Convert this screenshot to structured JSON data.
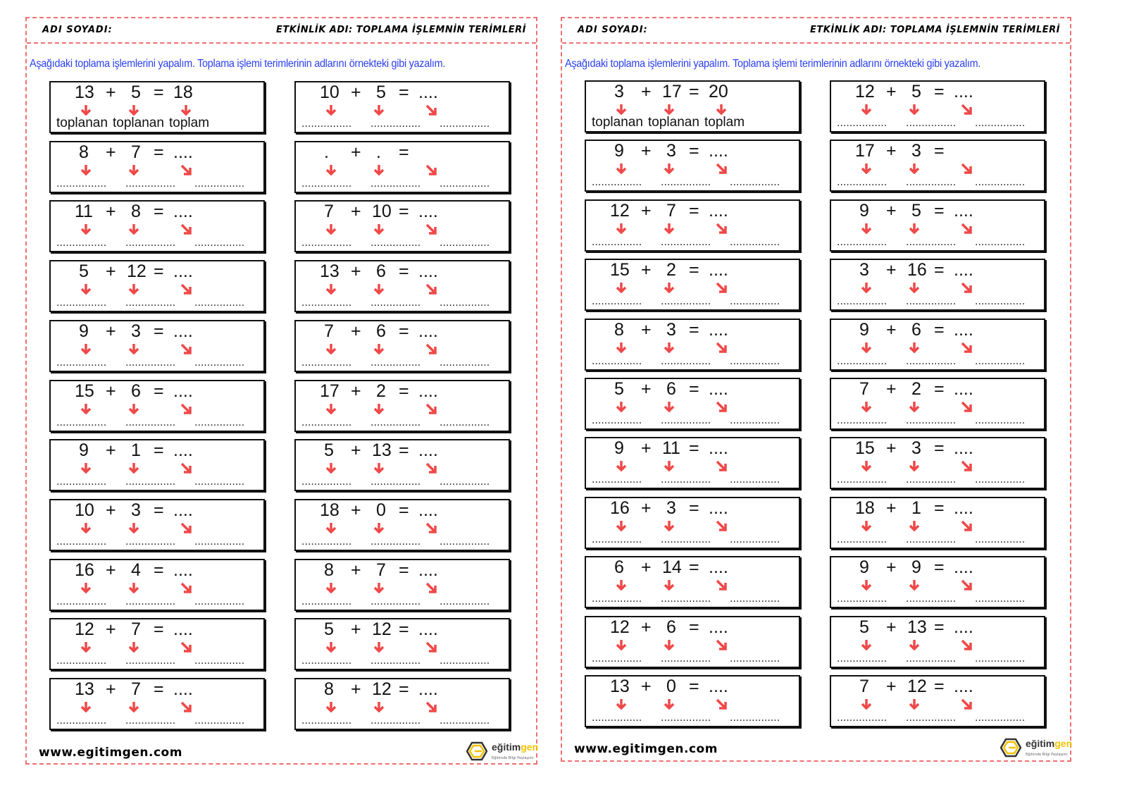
{
  "colors": {
    "border": "#f07070",
    "instruction": "#2a3ff0",
    "arrow": "#f04848"
  },
  "header": {
    "name_label": "ADI SOYADI:",
    "activity_label": "ETKİNLİK ADI: TOPLAMA İŞLEMNİN TERİMLERİ"
  },
  "instruction": "Aşağıdaki toplama işlemlerini yapalım. Toplama işlemi terimlerinin adlarını örnekteki gibi yazalım.",
  "example_labels": [
    "toplanan",
    "toplanan",
    "toplam"
  ],
  "blank": "................",
  "footer": {
    "website": "www.egitimgen.com",
    "logo_text_1": "eğitim",
    "logo_text_2": "gen",
    "logo_tagline": "Eğitimde Bilgi Paylaşımı"
  },
  "pages": [
    {
      "left": [
        {
          "a": "13",
          "b": "5",
          "r": "18",
          "example": true
        },
        {
          "a": "8",
          "b": "7",
          "r": "...."
        },
        {
          "a": "11",
          "b": "8",
          "r": "...."
        },
        {
          "a": "5",
          "b": "12",
          "r": "...."
        },
        {
          "a": "9",
          "b": "3",
          "r": "...."
        },
        {
          "a": "15",
          "b": "6",
          "r": "...."
        },
        {
          "a": "9",
          "b": "1",
          "r": "...."
        },
        {
          "a": "10",
          "b": "3",
          "r": "...."
        },
        {
          "a": "16",
          "b": "4",
          "r": "...."
        },
        {
          "a": "12",
          "b": "7",
          "r": "...."
        },
        {
          "a": "13",
          "b": "7",
          "r": "...."
        }
      ],
      "right": [
        {
          "a": "10",
          "b": "5",
          "r": "...."
        },
        {
          "a": ".",
          "b": ".",
          "r": ""
        },
        {
          "a": "7",
          "b": "10",
          "r": "...."
        },
        {
          "a": "13",
          "b": "6",
          "r": "...."
        },
        {
          "a": "7",
          "b": "6",
          "r": "...."
        },
        {
          "a": "17",
          "b": "2",
          "r": "...."
        },
        {
          "a": "5",
          "b": "13",
          "r": "...."
        },
        {
          "a": "18",
          "b": "0",
          "r": "...."
        },
        {
          "a": "8",
          "b": "7",
          "r": "...."
        },
        {
          "a": "5",
          "b": "12",
          "r": "...."
        },
        {
          "a": "8",
          "b": "12",
          "r": "...."
        }
      ]
    },
    {
      "left": [
        {
          "a": "3",
          "b": "17",
          "r": "20",
          "example": true
        },
        {
          "a": "9",
          "b": "3",
          "r": "...."
        },
        {
          "a": "12",
          "b": "7",
          "r": "...."
        },
        {
          "a": "15",
          "b": "2",
          "r": "...."
        },
        {
          "a": "8",
          "b": "3",
          "r": "...."
        },
        {
          "a": "5",
          "b": "6",
          "r": "...."
        },
        {
          "a": "9",
          "b": "11",
          "r": "...."
        },
        {
          "a": "16",
          "b": "3",
          "r": "...."
        },
        {
          "a": "6",
          "b": "14",
          "r": "...."
        },
        {
          "a": "12",
          "b": "6",
          "r": "...."
        },
        {
          "a": "13",
          "b": "0",
          "r": "...."
        }
      ],
      "right": [
        {
          "a": "12",
          "b": "5",
          "r": "...."
        },
        {
          "a": "17",
          "b": "3",
          "r": ""
        },
        {
          "a": "9",
          "b": "5",
          "r": "...."
        },
        {
          "a": "3",
          "b": "16",
          "r": "...."
        },
        {
          "a": "9",
          "b": "6",
          "r": "...."
        },
        {
          "a": "7",
          "b": "2",
          "r": "...."
        },
        {
          "a": "15",
          "b": "3",
          "r": "...."
        },
        {
          "a": "18",
          "b": "1",
          "r": "...."
        },
        {
          "a": "9",
          "b": "9",
          "r": "...."
        },
        {
          "a": "5",
          "b": "13",
          "r": "...."
        },
        {
          "a": "7",
          "b": "12",
          "r": "...."
        }
      ]
    }
  ]
}
